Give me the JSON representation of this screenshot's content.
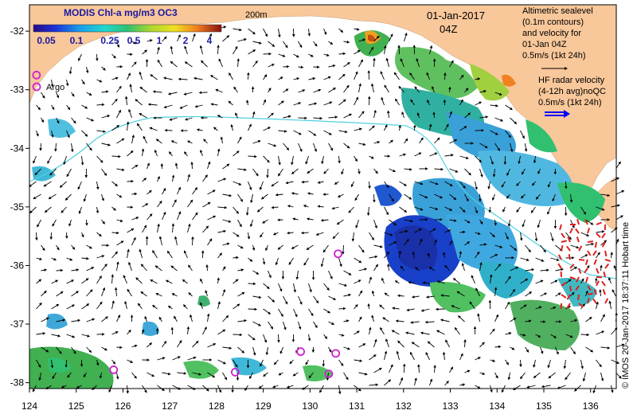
{
  "colorbar": {
    "title": "MODIS Chl-a mg/m3 OC3",
    "ticks": [
      "0.05",
      "0.1",
      "0.25",
      "0.5",
      "1",
      "2",
      "4"
    ]
  },
  "isobath_label": "200m",
  "date": "01-Jan-2017",
  "time": "04Z",
  "legend": {
    "altimetry_lines": [
      "Altimetric sealevel",
      "(0.1m contours)",
      "and velocity for",
      "01-Jan 04Z",
      "0.5m/s (1kt 24h)"
    ],
    "hf_lines": [
      "HF radar velocity",
      "(4-12h avg)noQC",
      "0.5m/s (1kt 24h)"
    ],
    "argo": "Argo"
  },
  "x_ticks": [
    "124",
    "125",
    "126",
    "127",
    "128",
    "129",
    "130",
    "131",
    "132",
    "133",
    "134",
    "135",
    "136"
  ],
  "y_ticks": [
    "-32",
    "-33",
    "-34",
    "-35",
    "-36",
    "-37",
    "-38"
  ],
  "credit": "© IMOS 20-Jan-2017 18:37:11 Hobart time",
  "argo_floats": [
    {
      "lon": 124.15,
      "lat": -32.75
    },
    {
      "lon": 125.8,
      "lat": -37.78
    },
    {
      "lon": 128.4,
      "lat": -37.82
    },
    {
      "lon": 129.8,
      "lat": -37.47
    },
    {
      "lon": 130.4,
      "lat": -37.85
    },
    {
      "lon": 130.55,
      "lat": -37.5
    },
    {
      "lon": 130.6,
      "lat": -35.8
    }
  ],
  "colors": {
    "land": "#f8c79a",
    "ocean": "#ffffff",
    "isobath": "#4fd0e0",
    "argo": "#d020d0",
    "hf_arrow": "#e02020",
    "hf_legend": "#0000ff"
  }
}
